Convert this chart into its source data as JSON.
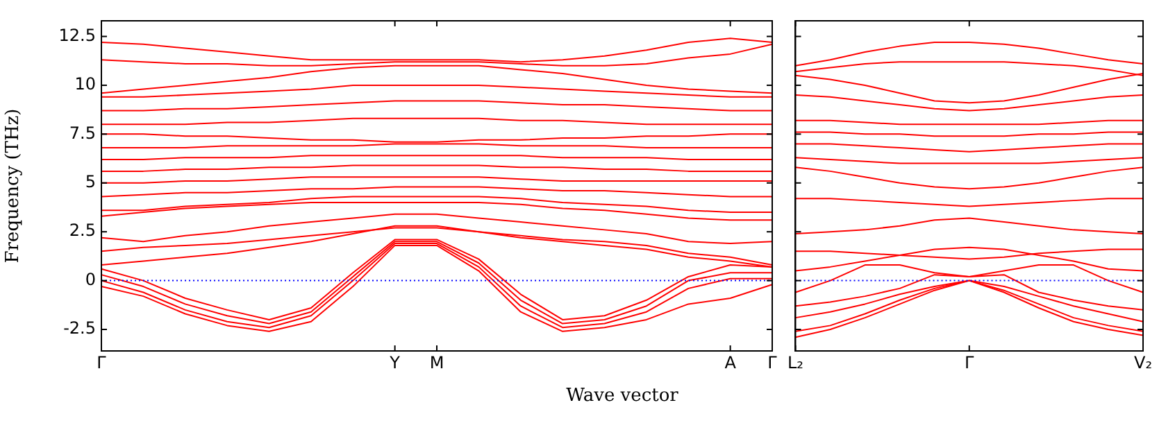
{
  "chart_data": [
    {
      "type": "line",
      "ylabel": "Frequency (THz)",
      "xlabel": "Wave vector",
      "legend": false,
      "ylim": [
        -3.6,
        13.3
      ],
      "yticks": [
        -2.5,
        0,
        2.5,
        5,
        7.5,
        10,
        12.5
      ],
      "ref_lines": [
        {
          "axis": "y",
          "value": 0,
          "color": "#0000ff",
          "line_style": "dotted"
        }
      ],
      "categories": [
        "Γ",
        null,
        null,
        null,
        null,
        null,
        null,
        "Y",
        "M",
        null,
        null,
        null,
        null,
        null,
        null,
        "A",
        "Γ"
      ],
      "series": [
        {
          "color": "#ff0000",
          "values": [
            -0.3,
            -0.8,
            -1.7,
            -2.3,
            -2.6,
            -2.1,
            -0.3,
            1.8,
            1.8,
            0.5,
            -1.6,
            -2.6,
            -2.4,
            -2.0,
            -1.2,
            -0.9,
            -0.2
          ]
        },
        {
          "color": "#ff0000",
          "values": [
            0,
            -0.6,
            -1.5,
            -2.1,
            -2.4,
            -1.8,
            0,
            1.9,
            1.9,
            0.7,
            -1.3,
            -2.4,
            -2.2,
            -1.6,
            -0.4,
            0.1,
            0.1
          ]
        },
        {
          "color": "#ff0000",
          "values": [
            0.3,
            -0.3,
            -1.2,
            -1.8,
            -2.2,
            -1.6,
            0.2,
            2.0,
            2.0,
            0.9,
            -1.0,
            -2.2,
            -2.0,
            -1.3,
            0,
            0.4,
            0.4
          ]
        },
        {
          "color": "#ff0000",
          "values": [
            0.6,
            0,
            -0.9,
            -1.5,
            -2.0,
            -1.4,
            0.4,
            2.1,
            2.1,
            1.1,
            -0.7,
            -2.0,
            -1.8,
            -1.0,
            0.2,
            0.8,
            0.7
          ]
        },
        {
          "color": "#ff0000",
          "values": [
            1.5,
            1.7,
            1.8,
            1.9,
            2.1,
            2.3,
            2.5,
            2.7,
            2.7,
            2.5,
            2.3,
            2.1,
            2.0,
            1.8,
            1.4,
            1.2,
            0.8
          ]
        },
        {
          "color": "#ff0000",
          "values": [
            2.2,
            2.0,
            2.3,
            2.5,
            2.8,
            3.0,
            3.2,
            3.4,
            3.4,
            3.2,
            3.0,
            2.8,
            2.6,
            2.4,
            2.0,
            1.9,
            2.0
          ]
        },
        {
          "color": "#ff0000",
          "values": [
            0.8,
            1.0,
            1.2,
            1.4,
            1.7,
            2.0,
            2.4,
            2.8,
            2.8,
            2.5,
            2.2,
            2.0,
            1.8,
            1.6,
            1.2,
            1.0,
            0.7
          ]
        },
        {
          "color": "#ff0000",
          "values": [
            3.3,
            3.5,
            3.7,
            3.8,
            3.9,
            4.0,
            4.0,
            4.0,
            4.0,
            4.0,
            3.9,
            3.7,
            3.6,
            3.4,
            3.2,
            3.1,
            3.1
          ]
        },
        {
          "color": "#ff0000",
          "values": [
            3.6,
            3.6,
            3.8,
            3.9,
            4.0,
            4.2,
            4.3,
            4.3,
            4.3,
            4.3,
            4.2,
            4.0,
            3.9,
            3.8,
            3.6,
            3.5,
            3.5
          ]
        },
        {
          "color": "#ff0000",
          "values": [
            4.3,
            4.4,
            4.5,
            4.5,
            4.6,
            4.7,
            4.7,
            4.8,
            4.8,
            4.8,
            4.7,
            4.6,
            4.6,
            4.5,
            4.4,
            4.3,
            4.3
          ]
        },
        {
          "color": "#ff0000",
          "values": [
            5.0,
            5.0,
            5.1,
            5.1,
            5.2,
            5.3,
            5.3,
            5.3,
            5.3,
            5.3,
            5.2,
            5.1,
            5.1,
            5.1,
            5.1,
            5.1,
            5.1
          ]
        },
        {
          "color": "#ff0000",
          "values": [
            5.6,
            5.6,
            5.7,
            5.7,
            5.8,
            5.8,
            5.9,
            5.9,
            5.9,
            5.9,
            5.8,
            5.8,
            5.7,
            5.7,
            5.6,
            5.6,
            5.6
          ]
        },
        {
          "color": "#ff0000",
          "values": [
            6.2,
            6.2,
            6.3,
            6.3,
            6.3,
            6.4,
            6.4,
            6.4,
            6.4,
            6.4,
            6.4,
            6.3,
            6.3,
            6.3,
            6.2,
            6.2,
            6.2
          ]
        },
        {
          "color": "#ff0000",
          "values": [
            6.8,
            6.8,
            6.8,
            6.9,
            6.9,
            6.9,
            6.9,
            7.0,
            7.0,
            7.0,
            6.9,
            6.9,
            6.9,
            6.8,
            6.8,
            6.8,
            6.8
          ]
        },
        {
          "color": "#ff0000",
          "values": [
            7.5,
            7.5,
            7.4,
            7.4,
            7.3,
            7.2,
            7.2,
            7.1,
            7.1,
            7.2,
            7.2,
            7.3,
            7.3,
            7.4,
            7.4,
            7.5,
            7.5
          ]
        },
        {
          "color": "#ff0000",
          "values": [
            8.0,
            8.0,
            8.0,
            8.1,
            8.1,
            8.2,
            8.3,
            8.3,
            8.3,
            8.3,
            8.2,
            8.2,
            8.1,
            8.0,
            8.0,
            8.0,
            8.0
          ]
        },
        {
          "color": "#ff0000",
          "values": [
            8.7,
            8.7,
            8.8,
            8.8,
            8.9,
            9.0,
            9.1,
            9.2,
            9.2,
            9.2,
            9.1,
            9.0,
            9.0,
            8.9,
            8.8,
            8.7,
            8.7
          ]
        },
        {
          "color": "#ff0000",
          "values": [
            9.4,
            9.4,
            9.5,
            9.6,
            9.7,
            9.8,
            10.0,
            10.0,
            10.0,
            10.0,
            9.9,
            9.8,
            9.7,
            9.6,
            9.5,
            9.4,
            9.4
          ]
        },
        {
          "color": "#ff0000",
          "values": [
            9.6,
            9.8,
            10.0,
            10.2,
            10.4,
            10.7,
            10.9,
            11.0,
            11.0,
            11.0,
            10.8,
            10.6,
            10.3,
            10.0,
            9.8,
            9.7,
            9.6
          ]
        },
        {
          "color": "#ff0000",
          "values": [
            11.3,
            11.2,
            11.1,
            11.1,
            11.0,
            11.0,
            11.1,
            11.2,
            11.2,
            11.2,
            11.1,
            11.0,
            11.0,
            11.1,
            11.4,
            11.6,
            12.1
          ]
        },
        {
          "color": "#ff0000",
          "values": [
            12.2,
            12.1,
            11.9,
            11.7,
            11.5,
            11.3,
            11.3,
            11.3,
            11.3,
            11.3,
            11.2,
            11.3,
            11.5,
            11.8,
            12.2,
            12.4,
            12.2
          ]
        }
      ]
    },
    {
      "type": "line",
      "legend": false,
      "tick_labels": "x",
      "ylim": [
        -3.6,
        13.3
      ],
      "yticks": [
        -2.5,
        0,
        2.5,
        5,
        7.5,
        10,
        12.5
      ],
      "ref_lines": [
        {
          "axis": "y",
          "value": 0,
          "color": "#0000ff",
          "line_style": "dotted"
        }
      ],
      "categories": [
        "L₂",
        null,
        null,
        null,
        null,
        "Γ",
        null,
        null,
        null,
        null,
        "V₂"
      ],
      "series": [
        {
          "color": "#ff0000",
          "values": [
            -2.9,
            -2.5,
            -1.9,
            -1.2,
            -0.5,
            0,
            -0.6,
            -1.4,
            -2.1,
            -2.5,
            -2.8
          ]
        },
        {
          "color": "#ff0000",
          "values": [
            -2.6,
            -2.3,
            -1.7,
            -1.0,
            -0.4,
            0,
            -0.5,
            -1.2,
            -1.9,
            -2.3,
            -2.6
          ]
        },
        {
          "color": "#ff0000",
          "values": [
            -1.9,
            -1.6,
            -1.2,
            -0.7,
            -0.3,
            0,
            -0.3,
            -0.8,
            -1.3,
            -1.7,
            -2.1
          ]
        },
        {
          "color": "#ff0000",
          "values": [
            -1.3,
            -1.1,
            -0.8,
            -0.4,
            0.3,
            0.2,
            0.3,
            -0.6,
            -1.0,
            -1.3,
            -1.5
          ]
        },
        {
          "color": "#ff0000",
          "values": [
            -0.6,
            0,
            0.8,
            0.8,
            0.4,
            0.2,
            0.5,
            0.8,
            0.8,
            0,
            -0.6
          ]
        },
        {
          "color": "#ff0000",
          "values": [
            0.5,
            0.7,
            1.0,
            1.3,
            1.6,
            1.7,
            1.6,
            1.3,
            1.0,
            0.6,
            0.5
          ]
        },
        {
          "color": "#ff0000",
          "values": [
            1.5,
            1.5,
            1.4,
            1.3,
            1.2,
            1.1,
            1.2,
            1.4,
            1.5,
            1.6,
            1.6
          ]
        },
        {
          "color": "#ff0000",
          "values": [
            2.4,
            2.5,
            2.6,
            2.8,
            3.1,
            3.2,
            3.0,
            2.8,
            2.6,
            2.5,
            2.4
          ]
        },
        {
          "color": "#ff0000",
          "values": [
            4.2,
            4.2,
            4.1,
            4.0,
            3.9,
            3.8,
            3.9,
            4.0,
            4.1,
            4.2,
            4.2
          ]
        },
        {
          "color": "#ff0000",
          "values": [
            5.8,
            5.6,
            5.3,
            5.0,
            4.8,
            4.7,
            4.8,
            5.0,
            5.3,
            5.6,
            5.8
          ]
        },
        {
          "color": "#ff0000",
          "values": [
            6.3,
            6.2,
            6.1,
            6.0,
            6.0,
            6.0,
            6.0,
            6.0,
            6.1,
            6.2,
            6.3
          ]
        },
        {
          "color": "#ff0000",
          "values": [
            7.0,
            7.0,
            6.9,
            6.8,
            6.7,
            6.6,
            6.7,
            6.8,
            6.9,
            7.0,
            7.0
          ]
        },
        {
          "color": "#ff0000",
          "values": [
            7.6,
            7.6,
            7.5,
            7.5,
            7.4,
            7.4,
            7.4,
            7.5,
            7.5,
            7.6,
            7.6
          ]
        },
        {
          "color": "#ff0000",
          "values": [
            8.2,
            8.2,
            8.1,
            8.0,
            8.0,
            8.0,
            8.0,
            8.0,
            8.1,
            8.2,
            8.2
          ]
        },
        {
          "color": "#ff0000",
          "values": [
            9.5,
            9.4,
            9.2,
            9.0,
            8.8,
            8.7,
            8.8,
            9.0,
            9.2,
            9.4,
            9.5
          ]
        },
        {
          "color": "#ff0000",
          "values": [
            10.5,
            10.3,
            10.0,
            9.6,
            9.2,
            9.1,
            9.2,
            9.5,
            9.9,
            10.3,
            10.6
          ]
        },
        {
          "color": "#ff0000",
          "values": [
            10.7,
            10.9,
            11.1,
            11.2,
            11.2,
            11.2,
            11.2,
            11.1,
            11.0,
            10.8,
            10.5
          ]
        },
        {
          "color": "#ff0000",
          "values": [
            11.0,
            11.3,
            11.7,
            12.0,
            12.2,
            12.2,
            12.1,
            11.9,
            11.6,
            11.3,
            11.1
          ]
        }
      ]
    }
  ]
}
